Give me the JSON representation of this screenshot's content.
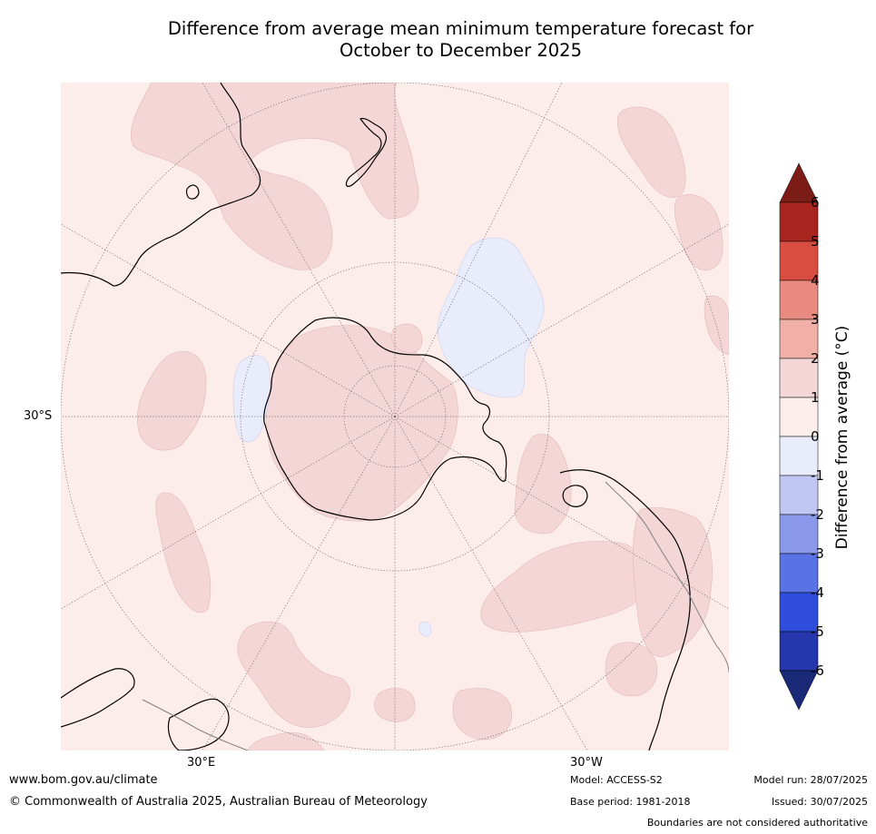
{
  "title": {
    "line1": "Difference from average mean minimum temperature forecast for",
    "line2": "October to December 2025"
  },
  "map": {
    "projection": "south-polar-stereographic",
    "labels": {
      "lat_30s": "30°S",
      "lon_30e": "30°E",
      "lon_30w": "30°W"
    },
    "background_category": "0 to 1",
    "colors": {
      "ocean_background": "#fcecea",
      "anomaly_1_2": "#f4d6d6",
      "anomaly_neg1_0": "#e9ecfb",
      "coastline": "#000000",
      "boundaries": "#808080",
      "graticule": "#666666"
    }
  },
  "colorbar": {
    "label": "Difference from average (°C)",
    "ticks": [
      "6",
      "5",
      "4",
      "3",
      "2",
      "1",
      "0",
      "-1",
      "-2",
      "-3",
      "-4",
      "-5",
      "-6"
    ],
    "bins": [
      {
        "range": ">6",
        "color": "#7b1c17"
      },
      {
        "range": "5 to 6",
        "color": "#a8261f"
      },
      {
        "range": "4 to 5",
        "color": "#d94c40"
      },
      {
        "range": "3 to 4",
        "color": "#e88a80"
      },
      {
        "range": "2 to 3",
        "color": "#f0b0a8"
      },
      {
        "range": "1 to 2",
        "color": "#f4d6d6"
      },
      {
        "range": "0 to 1",
        "color": "#fcecea"
      },
      {
        "range": "-1 to 0",
        "color": "#e9ecfb"
      },
      {
        "range": "-2 to -1",
        "color": "#c1c7f3"
      },
      {
        "range": "-3 to -2",
        "color": "#8a99ec"
      },
      {
        "range": "-4 to -3",
        "color": "#5a73e4"
      },
      {
        "range": "-5 to -4",
        "color": "#2f4ddc"
      },
      {
        "range": "-6 to -5",
        "color": "#2637ad"
      },
      {
        "range": "<-6",
        "color": "#1b2a78"
      }
    ]
  },
  "footer": {
    "url": "www.bom.gov.au/climate",
    "copyright": "© Commonwealth of Australia 2025, Australian Bureau of Meteorology",
    "model": "Model: ACCESS-S2",
    "base_period": "Base period: 1981-2018",
    "model_run": "Model run: 28/07/2025",
    "issued": "Issued: 30/07/2025",
    "disclaimer": "Boundaries are not considered authoritative"
  }
}
